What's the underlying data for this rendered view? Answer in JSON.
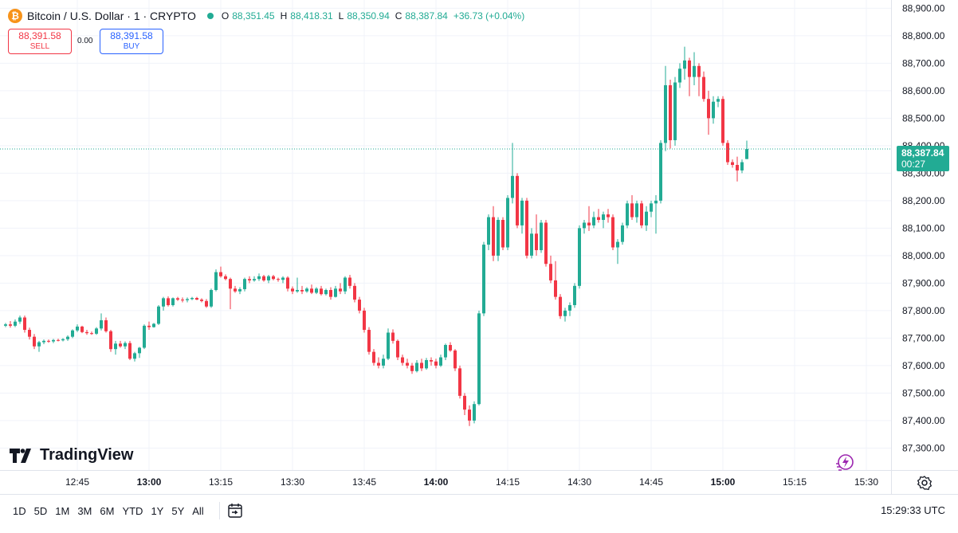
{
  "legend": {
    "title": "Bitcoin / U.S. Dollar · 1 · CRYPTO",
    "ohlc": [
      {
        "k": "O",
        "v": "88,351.45"
      },
      {
        "k": "H",
        "v": "88,418.31"
      },
      {
        "k": "L",
        "v": "88,350.94"
      },
      {
        "k": "C",
        "v": "88,387.84"
      }
    ],
    "change": "+36.73 (+0.04%)"
  },
  "trade": {
    "sell_price": "88,391.58",
    "sell_label": "SELL",
    "spread": "0.00",
    "buy_price": "88,391.58",
    "buy_label": "BUY"
  },
  "last_price": {
    "price": "88,387.84",
    "countdown": "00:27"
  },
  "brand": "TradingView",
  "toolbar": {
    "ranges": [
      "1D",
      "5D",
      "1M",
      "3M",
      "6M",
      "YTD",
      "1Y",
      "5Y",
      "All"
    ],
    "clock": "15:29:33 UTC"
  },
  "colors": {
    "up": "#22ab94",
    "down": "#f23645",
    "grid": "#f0f3fa",
    "axis_text": "#131722"
  },
  "icons": [
    "bitcoin-icon",
    "tradingview-logo-icon",
    "flash-icon",
    "settings-icon",
    "calendar-icon"
  ],
  "chart_data": {
    "type": "candlestick",
    "ylim": [
      87220,
      88930
    ],
    "yticks": [
      "88,900.00",
      "88,800.00",
      "88,700.00",
      "88,600.00",
      "88,500.00",
      "88,400.00",
      "88,300.00",
      "88,200.00",
      "88,100.00",
      "88,000.00",
      "87,900.00",
      "87,800.00",
      "87,700.00",
      "87,600.00",
      "87,500.00",
      "87,400.00",
      "87,300.00"
    ],
    "ytick_values": [
      88900,
      88800,
      88700,
      88600,
      88500,
      88400,
      88300,
      88200,
      88100,
      88000,
      87900,
      87800,
      87700,
      87600,
      87500,
      87400,
      87300
    ],
    "xticks": [
      "12:45",
      "13:00",
      "13:15",
      "13:30",
      "13:45",
      "14:00",
      "14:15",
      "14:30",
      "14:45",
      "15:00",
      "15:15",
      "15:30"
    ],
    "xtick_minutes": [
      765,
      780,
      795,
      810,
      825,
      840,
      855,
      870,
      885,
      900,
      915,
      930
    ],
    "bold_xticks": [
      "13:00",
      "14:00",
      "15:00"
    ],
    "start_minute": 750,
    "candles": [
      [
        87745,
        87755,
        87740,
        87750
      ],
      [
        87750,
        87762,
        87738,
        87745
      ],
      [
        87745,
        87768,
        87740,
        87760
      ],
      [
        87760,
        87782,
        87752,
        87775
      ],
      [
        87775,
        87782,
        87720,
        87730
      ],
      [
        87730,
        87738,
        87695,
        87705
      ],
      [
        87705,
        87715,
        87660,
        87670
      ],
      [
        87670,
        87690,
        87650,
        87685
      ],
      [
        87685,
        87695,
        87678,
        87690
      ],
      [
        87690,
        87695,
        87683,
        87688
      ],
      [
        87688,
        87697,
        87682,
        87693
      ],
      [
        87693,
        87698,
        87688,
        87692
      ],
      [
        87692,
        87700,
        87688,
        87696
      ],
      [
        87696,
        87710,
        87690,
        87705
      ],
      [
        87705,
        87732,
        87700,
        87728
      ],
      [
        87728,
        87750,
        87722,
        87742
      ],
      [
        87742,
        87745,
        87718,
        87722
      ],
      [
        87722,
        87730,
        87712,
        87718
      ],
      [
        87718,
        87724,
        87712,
        87716
      ],
      [
        87716,
        87740,
        87712,
        87735
      ],
      [
        87735,
        87790,
        87728,
        87765
      ],
      [
        87765,
        87775,
        87720,
        87725
      ],
      [
        87725,
        87730,
        87650,
        87660
      ],
      [
        87660,
        87690,
        87640,
        87680
      ],
      [
        87680,
        87690,
        87665,
        87670
      ],
      [
        87670,
        87688,
        87660,
        87682
      ],
      [
        87682,
        87690,
        87620,
        87625
      ],
      [
        87625,
        87650,
        87615,
        87645
      ],
      [
        87645,
        87668,
        87628,
        87665
      ],
      [
        87665,
        87750,
        87660,
        87745
      ],
      [
        87745,
        87760,
        87730,
        87740
      ],
      [
        87740,
        87755,
        87738,
        87752
      ],
      [
        87752,
        87820,
        87748,
        87815
      ],
      [
        87815,
        87850,
        87800,
        87845
      ],
      [
        87845,
        87852,
        87815,
        87820
      ],
      [
        87820,
        87848,
        87815,
        87845
      ],
      [
        87845,
        87850,
        87835,
        87840
      ],
      [
        87840,
        87848,
        87830,
        87838
      ],
      [
        87838,
        87848,
        87830,
        87842
      ],
      [
        87842,
        87850,
        87838,
        87846
      ],
      [
        87846,
        87850,
        87838,
        87840
      ],
      [
        87840,
        87845,
        87830,
        87835
      ],
      [
        87835,
        87842,
        87810,
        87815
      ],
      [
        87815,
        87880,
        87810,
        87875
      ],
      [
        87875,
        87950,
        87870,
        87940
      ],
      [
        87940,
        87960,
        87920,
        87925
      ],
      [
        87925,
        87932,
        87910,
        87915
      ],
      [
        87915,
        87920,
        87805,
        87880
      ],
      [
        87880,
        87890,
        87865,
        87870
      ],
      [
        87870,
        87885,
        87860,
        87878
      ],
      [
        87878,
        87920,
        87870,
        87915
      ],
      [
        87915,
        87925,
        87900,
        87910
      ],
      [
        87910,
        87925,
        87905,
        87915
      ],
      [
        87915,
        87935,
        87908,
        87925
      ],
      [
        87925,
        87930,
        87905,
        87910
      ],
      [
        87910,
        87930,
        87900,
        87925
      ],
      [
        87925,
        87930,
        87910,
        87915
      ],
      [
        87915,
        87920,
        87905,
        87912
      ],
      [
        87912,
        87925,
        87900,
        87920
      ],
      [
        87920,
        87925,
        87870,
        87880
      ],
      [
        87880,
        87888,
        87860,
        87870
      ],
      [
        87870,
        87920,
        87865,
        87875
      ],
      [
        87875,
        87890,
        87860,
        87870
      ],
      [
        87870,
        87885,
        87865,
        87880
      ],
      [
        87880,
        87895,
        87860,
        87865
      ],
      [
        87865,
        87885,
        87860,
        87880
      ],
      [
        87880,
        87890,
        87855,
        87860
      ],
      [
        87860,
        87880,
        87855,
        87875
      ],
      [
        87875,
        87885,
        87840,
        87850
      ],
      [
        87850,
        87890,
        87848,
        87880
      ],
      [
        87880,
        87900,
        87860,
        87870
      ],
      [
        87870,
        87925,
        87860,
        87920
      ],
      [
        87920,
        87930,
        87880,
        87890
      ],
      [
        87890,
        87900,
        87830,
        87840
      ],
      [
        87840,
        87850,
        87790,
        87800
      ],
      [
        87800,
        87810,
        87720,
        87730
      ],
      [
        87730,
        87740,
        87640,
        87650
      ],
      [
        87650,
        87660,
        87600,
        87610
      ],
      [
        87610,
        87630,
        87590,
        87600
      ],
      [
        87600,
        87640,
        87590,
        87625
      ],
      [
        87625,
        87735,
        87620,
        87720
      ],
      [
        87720,
        87732,
        87680,
        87690
      ],
      [
        87690,
        87695,
        87620,
        87630
      ],
      [
        87630,
        87640,
        87600,
        87610
      ],
      [
        87610,
        87625,
        87590,
        87600
      ],
      [
        87600,
        87610,
        87570,
        87580
      ],
      [
        87580,
        87620,
        87575,
        87610
      ],
      [
        87610,
        87625,
        87580,
        87590
      ],
      [
        87590,
        87628,
        87585,
        87620
      ],
      [
        87620,
        87630,
        87600,
        87615
      ],
      [
        87615,
        87625,
        87590,
        87600
      ],
      [
        87600,
        87640,
        87595,
        87630
      ],
      [
        87630,
        87680,
        87620,
        87675
      ],
      [
        87675,
        87685,
        87650,
        87655
      ],
      [
        87655,
        87660,
        87580,
        87590
      ],
      [
        87590,
        87600,
        87480,
        87490
      ],
      [
        87490,
        87500,
        87420,
        87440
      ],
      [
        87440,
        87455,
        87380,
        87400
      ],
      [
        87400,
        87470,
        87390,
        87460
      ],
      [
        87460,
        87800,
        87455,
        87790
      ],
      [
        87790,
        88050,
        87780,
        88040
      ],
      [
        88040,
        88150,
        88020,
        88140
      ],
      [
        88140,
        88180,
        87980,
        88000
      ],
      [
        88000,
        88140,
        87980,
        88130
      ],
      [
        88130,
        88140,
        88020,
        88030
      ],
      [
        88030,
        88220,
        88020,
        88210
      ],
      [
        88210,
        88410,
        88190,
        88290
      ],
      [
        88290,
        88300,
        88100,
        88110
      ],
      [
        88110,
        88210,
        88080,
        88200
      ],
      [
        88200,
        88210,
        87990,
        88000
      ],
      [
        88000,
        88100,
        87990,
        88080
      ],
      [
        88080,
        88150,
        88000,
        88020
      ],
      [
        88020,
        88130,
        88010,
        88120
      ],
      [
        88120,
        88130,
        87960,
        87970
      ],
      [
        87970,
        88000,
        87900,
        87910
      ],
      [
        87910,
        87980,
        87840,
        87850
      ],
      [
        87850,
        87860,
        87770,
        87780
      ],
      [
        87780,
        87810,
        87760,
        87800
      ],
      [
        87800,
        87830,
        87780,
        87820
      ],
      [
        87820,
        87900,
        87810,
        87890
      ],
      [
        87890,
        88110,
        87880,
        88100
      ],
      [
        88100,
        88130,
        88080,
        88120
      ],
      [
        88120,
        88180,
        88090,
        88110
      ],
      [
        88110,
        88160,
        88100,
        88140
      ],
      [
        88140,
        88170,
        88120,
        88130
      ],
      [
        88130,
        88160,
        88100,
        88150
      ],
      [
        88150,
        88170,
        88120,
        88140
      ],
      [
        88140,
        88150,
        88020,
        88030
      ],
      [
        88030,
        88060,
        87970,
        88050
      ],
      [
        88050,
        88120,
        88040,
        88110
      ],
      [
        88110,
        88200,
        88100,
        88190
      ],
      [
        88190,
        88220,
        88130,
        88140
      ],
      [
        88140,
        88200,
        88120,
        88190
      ],
      [
        88190,
        88200,
        88100,
        88110
      ],
      [
        88110,
        88180,
        88090,
        88160
      ],
      [
        88160,
        88200,
        88140,
        88190
      ],
      [
        88190,
        88220,
        88080,
        88200
      ],
      [
        88200,
        88420,
        88190,
        88410
      ],
      [
        88410,
        88690,
        88380,
        88620
      ],
      [
        88620,
        88640,
        88390,
        88420
      ],
      [
        88420,
        88650,
        88400,
        88630
      ],
      [
        88630,
        88700,
        88610,
        88680
      ],
      [
        88680,
        88760,
        88640,
        88710
      ],
      [
        88710,
        88720,
        88580,
        88650
      ],
      [
        88650,
        88740,
        88620,
        88690
      ],
      [
        88690,
        88700,
        88580,
        88650
      ],
      [
        88650,
        88670,
        88560,
        88570
      ],
      [
        88570,
        88600,
        88440,
        88500
      ],
      [
        88500,
        88580,
        88480,
        88560
      ],
      [
        88560,
        88580,
        88540,
        88570
      ],
      [
        88570,
        88580,
        88400,
        88410
      ],
      [
        88410,
        88420,
        88330,
        88340
      ],
      [
        88340,
        88350,
        88320,
        88330
      ],
      [
        88330,
        88360,
        88270,
        88310
      ],
      [
        88310,
        88350,
        88300,
        88340
      ],
      [
        88351.45,
        88418.31,
        88350.94,
        88387.84
      ]
    ]
  }
}
